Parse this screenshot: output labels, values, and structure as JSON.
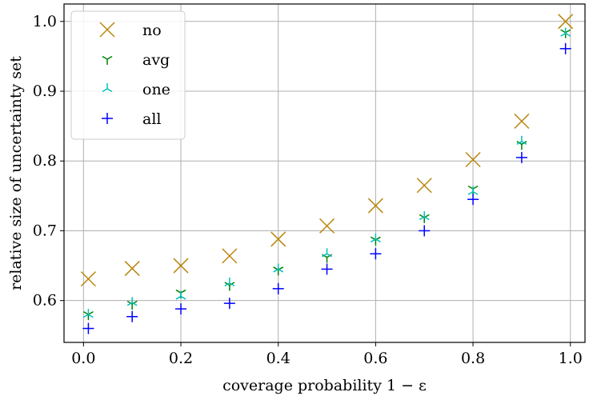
{
  "chart_data": {
    "type": "scatter",
    "title": "",
    "xlabel": "coverage probability 1 − ε",
    "ylabel": "relative size of uncertainty set",
    "xlim": [
      -0.04,
      1.03
    ],
    "ylim": [
      0.54,
      1.025
    ],
    "xticks": [
      0.0,
      0.2,
      0.4,
      0.6,
      0.8,
      1.0
    ],
    "xtick_labels": [
      "0.0",
      "0.2",
      "0.4",
      "0.6",
      "0.8",
      "1.0"
    ],
    "yticks": [
      0.6,
      0.7,
      0.8,
      0.9,
      1.0
    ],
    "ytick_labels": [
      "0.6",
      "0.7",
      "0.8",
      "0.9",
      "1.0"
    ],
    "grid": true,
    "legend_position": "top-left",
    "x": [
      0.01,
      0.1,
      0.2,
      0.3,
      0.4,
      0.5,
      0.6,
      0.7,
      0.8,
      0.9,
      0.99
    ],
    "series": [
      {
        "name": "no",
        "marker": "x",
        "color": "#b8860b",
        "values": [
          0.631,
          0.646,
          0.65,
          0.664,
          0.688,
          0.707,
          0.736,
          0.765,
          0.802,
          0.857,
          1.0
        ]
      },
      {
        "name": "avg",
        "marker": "tri_down",
        "color": "#008000",
        "values": [
          0.58,
          0.595,
          0.611,
          0.622,
          0.644,
          0.662,
          0.687,
          0.719,
          0.76,
          0.824,
          0.984
        ]
      },
      {
        "name": "one",
        "marker": "tri_up",
        "color": "#00bfbf",
        "values": [
          0.58,
          0.597,
          0.606,
          0.625,
          0.645,
          0.667,
          0.688,
          0.72,
          0.756,
          0.828,
          0.983
        ]
      },
      {
        "name": "all",
        "marker": "plus",
        "color": "#0000ff",
        "values": [
          0.56,
          0.577,
          0.588,
          0.596,
          0.617,
          0.645,
          0.667,
          0.7,
          0.745,
          0.805,
          0.961
        ]
      }
    ]
  }
}
